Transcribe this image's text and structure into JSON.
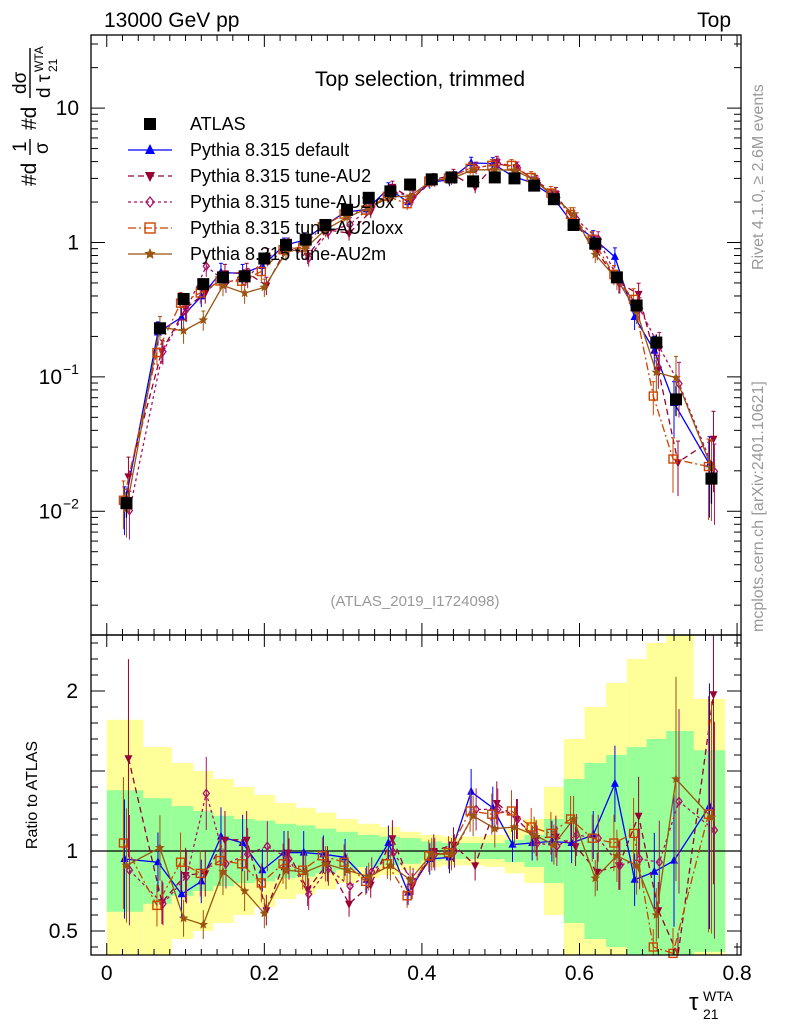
{
  "header": {
    "energy_label": "13000 GeV pp",
    "process_label": "Top"
  },
  "plot_title": "Top selection, trimmed",
  "side_labels": {
    "rivet": "Rivet 4.1.0, ≥ 2.6M events",
    "mcplots": "mcplots.cern.ch [arXiv:2401.10621]"
  },
  "analysis_id": "(ATLAS_2019_I1724098)",
  "y_axis_label": "#d1/σ #dd σ/dτ21WTA",
  "ratio_ylabel": "Ratio to ATLAS",
  "x_axis_label": "τ21WTA",
  "colors": {
    "data": "#000000",
    "default": "#0000ff",
    "au2": "#990033",
    "au2lox": "#aa1166",
    "au2loxx": "#cc4400",
    "au2m": "#995511",
    "band_inner": "#99ff99",
    "band_outer": "#ffff99"
  },
  "chart_data": {
    "type": "line",
    "xlim": [
      -0.02,
      0.805
    ],
    "main_ylim_log": [
      0.0012,
      35
    ],
    "ratio_ylim": [
      0.35,
      2.35
    ],
    "x": [
      0.025,
      0.0675,
      0.0975,
      0.1225,
      0.1475,
      0.175,
      0.2,
      0.2275,
      0.2525,
      0.2775,
      0.305,
      0.3325,
      0.36,
      0.385,
      0.4125,
      0.4375,
      0.465,
      0.4925,
      0.5175,
      0.5425,
      0.5675,
      0.5925,
      0.62,
      0.6475,
      0.6725,
      0.6975,
      0.7225,
      0.7675
    ],
    "x_ticks": [
      0,
      0.2,
      0.4,
      0.6,
      0.8
    ],
    "x_tick_labels": [
      "0",
      "0.2",
      "0.4",
      "0.6",
      "0.8"
    ],
    "main_y_ticks": [
      0.01,
      0.1,
      1,
      10
    ],
    "main_y_tick_labels": [
      "10-2",
      "10-1",
      "1",
      "10"
    ],
    "ratio_y_ticks": [
      0.5,
      1,
      2
    ],
    "ratio_y_tick_labels": [
      "0.5",
      "1",
      "2"
    ],
    "data_values": [
      0.0115,
      0.23,
      0.38,
      0.49,
      0.55,
      0.56,
      0.76,
      0.96,
      1.05,
      1.35,
      1.75,
      2.15,
      2.4,
      2.7,
      2.95,
      3.05,
      2.85,
      3.05,
      3.0,
      2.65,
      2.1,
      1.35,
      0.98,
      0.55,
      0.34,
      0.18,
      0.068,
      0.0175
    ],
    "data_errors_frac": [
      0.22,
      0.1,
      0.1,
      0.08,
      0.08,
      0.08,
      0.07,
      0.06,
      0.06,
      0.05,
      0.05,
      0.04,
      0.04,
      0.04,
      0.04,
      0.04,
      0.04,
      0.04,
      0.04,
      0.04,
      0.05,
      0.05,
      0.06,
      0.08,
      0.1,
      0.15,
      0.25,
      0.35
    ],
    "band_inner": [
      0.38,
      0.33,
      0.28,
      0.25,
      0.22,
      0.2,
      0.19,
      0.17,
      0.16,
      0.14,
      0.12,
      0.1,
      0.09,
      0.08,
      0.06,
      0.05,
      0.05,
      0.05,
      0.07,
      0.1,
      0.2,
      0.45,
      0.55,
      0.6,
      0.65,
      0.7,
      0.75,
      0.63
    ],
    "band_outer": [
      0.82,
      0.65,
      0.55,
      0.5,
      0.45,
      0.4,
      0.35,
      0.3,
      0.27,
      0.24,
      0.2,
      0.17,
      0.15,
      0.12,
      0.1,
      0.09,
      0.09,
      0.1,
      0.14,
      0.2,
      0.4,
      0.7,
      0.9,
      1.05,
      1.2,
      1.3,
      1.4,
      0.95
    ],
    "series": [
      {
        "name": "ATLAS",
        "key": "data",
        "marker": "square",
        "dash": ""
      },
      {
        "name": "Pythia 8.315 default",
        "key": "default",
        "marker": "triangle-up",
        "dash": "",
        "ratio": [
          0.95,
          0.93,
          0.73,
          0.81,
          1.09,
          1.05,
          0.88,
          0.99,
          0.99,
          0.98,
          0.96,
          0.82,
          1.05,
          0.74,
          0.95,
          0.96,
          1.37,
          1.27,
          1.04,
          1.05,
          1.06,
          1.05,
          1.1,
          1.42,
          0.82,
          0.87,
          0.94,
          1.28
        ]
      },
      {
        "name": "Pythia 8.315 tune-AU2",
        "key": "au2",
        "marker": "triangle-down",
        "dash": "6,4",
        "ratio": [
          1.58,
          0.68,
          0.85,
          0.86,
          1.07,
          1.07,
          0.63,
          0.99,
          0.76,
          0.92,
          0.67,
          0.79,
          1.08,
          0.78,
          1.0,
          1.04,
          0.91,
          1.3,
          1.2,
          1.08,
          1.09,
          1.03,
          0.87,
          0.91,
          1.22,
          0.63,
          0.34,
          1.98
        ]
      },
      {
        "name": "Pythia 8.315 tune-AU2lox",
        "key": "au2lox",
        "marker": "diamond",
        "dash": "3,3",
        "ratio": [
          0.88,
          0.67,
          0.84,
          1.36,
          0.92,
          0.98,
          1.03,
          0.95,
          0.73,
          0.89,
          0.78,
          0.87,
          0.99,
          0.81,
          0.98,
          1.0,
          1.26,
          1.26,
          1.2,
          1.05,
          1.03,
          1.1,
          1.08,
          0.91,
          0.95,
          0.93,
          1.31,
          1.13
        ]
      },
      {
        "name": "Pythia 8.315 tune-AU2loxx",
        "key": "au2loxx",
        "marker": "open-square",
        "dash": "8,3,2,3",
        "ratio": [
          1.05,
          0.66,
          0.93,
          0.86,
          0.94,
          0.92,
          0.8,
          0.92,
          0.88,
          0.97,
          0.93,
          0.81,
          0.92,
          0.72,
          0.97,
          0.99,
          1.25,
          1.23,
          1.25,
          1.15,
          1.11,
          1.2,
          1.08,
          1.05,
          1.11,
          0.4,
          0.36,
          1.23
        ]
      },
      {
        "name": "Pythia 8.315 tune-AU2m",
        "key": "au2m",
        "marker": "star",
        "dash": "",
        "ratio": [
          0.91,
          1.02,
          0.58,
          0.54,
          0.87,
          0.75,
          0.61,
          0.88,
          0.87,
          0.92,
          0.88,
          0.84,
          0.91,
          0.82,
          0.98,
          0.98,
          1.22,
          1.14,
          1.15,
          1.1,
          1.04,
          1.2,
          0.83,
          0.97,
          0.91,
          0.6,
          1.45,
          1.21
        ]
      }
    ]
  }
}
